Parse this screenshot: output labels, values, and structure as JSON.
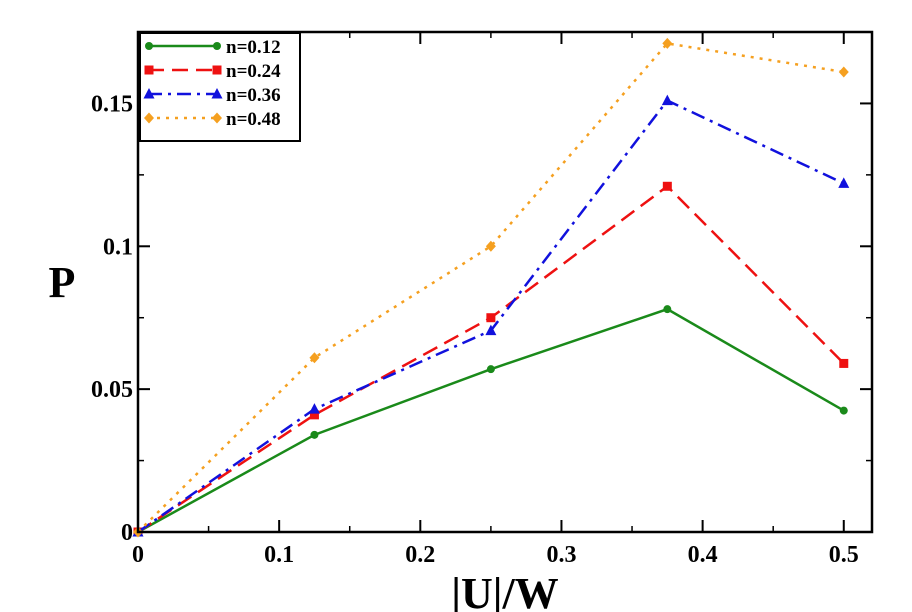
{
  "chart_data": {
    "type": "line",
    "title": "",
    "xlabel": "|U|/W",
    "ylabel": "P",
    "xlim": [
      0,
      0.52
    ],
    "ylim": [
      0,
      0.175
    ],
    "x": [
      0,
      0.125,
      0.25,
      0.375,
      0.5
    ],
    "xticks": [
      0,
      0.1,
      0.2,
      0.3,
      0.4,
      0.5
    ],
    "xtick_labels": [
      "0",
      "0.1",
      "0.2",
      "0.3",
      "0.4",
      "0.5"
    ],
    "yticks": [
      0,
      0.05,
      0.1,
      0.15
    ],
    "ytick_labels": [
      "0",
      "0.05",
      "0.1",
      "0.15"
    ],
    "grid": false,
    "legend_position": "top-left",
    "series": [
      {
        "name": "n=0.12",
        "values": [
          0,
          0.034,
          0.057,
          0.078,
          0.0425
        ],
        "color": "#1a8a1a",
        "marker": "circle",
        "dash": "solid"
      },
      {
        "name": "n=0.24",
        "values": [
          0,
          0.041,
          0.075,
          0.121,
          0.059
        ],
        "color": "#ee1111",
        "marker": "square",
        "dash": "dashed"
      },
      {
        "name": "n=0.36",
        "values": [
          0,
          0.043,
          0.0705,
          0.151,
          0.122
        ],
        "color": "#1111dd",
        "marker": "triangle",
        "dash": "dashdot"
      },
      {
        "name": "n=0.48",
        "values": [
          0,
          0.061,
          0.1,
          0.171,
          0.161
        ],
        "color": "#f5a020",
        "marker": "diamond",
        "dash": "dotted"
      }
    ]
  }
}
